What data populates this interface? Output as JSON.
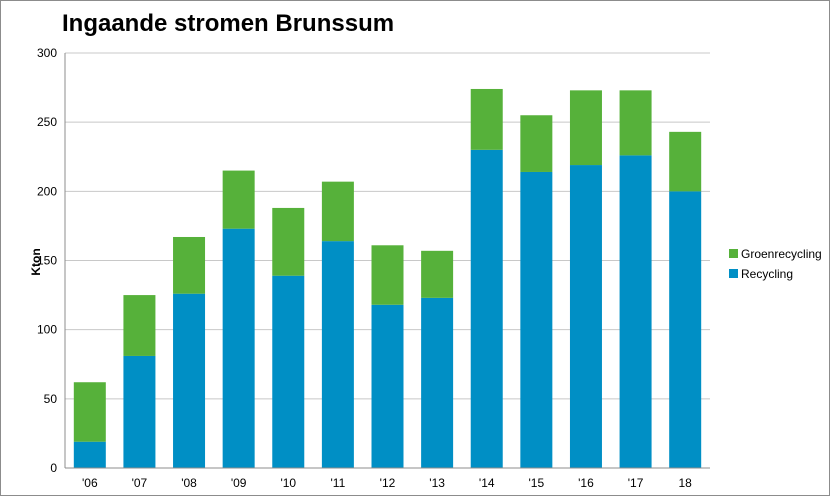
{
  "chart_data": {
    "type": "bar",
    "stacked": true,
    "title": "Ingaande stromen Brunssum",
    "xlabel": "",
    "ylabel": "Kton",
    "ylim": [
      0,
      300
    ],
    "yticks": [
      0,
      50,
      100,
      150,
      200,
      250,
      300
    ],
    "grid": true,
    "legend_position": "right",
    "categories": [
      "'06",
      "'07",
      "'08",
      "'09",
      "'10",
      "'11",
      "'12",
      "'13",
      "'14",
      "'15",
      "'16",
      "'17",
      "18"
    ],
    "series": [
      {
        "name": "Recycling",
        "color": "#008fc5",
        "values": [
          19,
          81,
          126,
          173,
          139,
          164,
          118,
          123,
          230,
          214,
          219,
          226,
          200
        ]
      },
      {
        "name": "Groenrecycling",
        "color": "#56b13a",
        "values": [
          43,
          44,
          41,
          42,
          49,
          43,
          43,
          34,
          44,
          41,
          54,
          47,
          43
        ]
      }
    ],
    "legend": [
      "Groenrecycling",
      "Recycling"
    ]
  }
}
